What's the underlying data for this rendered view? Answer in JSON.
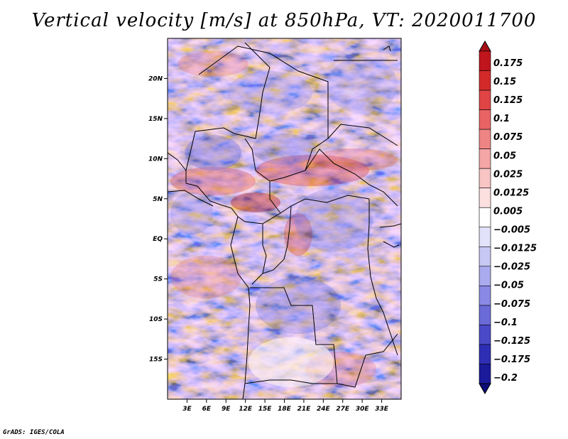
{
  "title": "Vertical velocity [m/s] at 850hPa, VT: 2020011700",
  "footer": "GrADS: IGES/COLA",
  "map": {
    "lon_range": [
      0,
      36
    ],
    "lat_range": [
      -20,
      25
    ],
    "lat_ticks": [
      {
        "value": 20,
        "label": "20N"
      },
      {
        "value": 15,
        "label": "15N"
      },
      {
        "value": 10,
        "label": "10N"
      },
      {
        "value": 5,
        "label": "5N"
      },
      {
        "value": 0,
        "label": "EQ"
      },
      {
        "value": -5,
        "label": "5S"
      },
      {
        "value": -10,
        "label": "10S"
      },
      {
        "value": -15,
        "label": "15S"
      }
    ],
    "lon_ticks": [
      {
        "value": 3,
        "label": "3E"
      },
      {
        "value": 6,
        "label": "6E"
      },
      {
        "value": 9,
        "label": "9E"
      },
      {
        "value": 12,
        "label": "12E"
      },
      {
        "value": 15,
        "label": "15E"
      },
      {
        "value": 18,
        "label": "18E"
      },
      {
        "value": 21,
        "label": "21E"
      },
      {
        "value": 24,
        "label": "24E"
      },
      {
        "value": 27,
        "label": "27E"
      },
      {
        "value": 30,
        "label": "30E"
      },
      {
        "value": 33,
        "label": "33E"
      }
    ]
  },
  "colorbar": {
    "levels": [
      "0.175",
      "0.15",
      "0.125",
      "0.1",
      "0.075",
      "0.05",
      "0.025",
      "0.0125",
      "0.005",
      "−0.005",
      "−0.0125",
      "−0.025",
      "−0.05",
      "−0.075",
      "−0.1",
      "−0.125",
      "−0.175",
      "−0.2"
    ],
    "colors": [
      "#a50f15",
      "#c0151c",
      "#d42a2a",
      "#e04444",
      "#e86464",
      "#ee8585",
      "#f4a5a5",
      "#f8c4c4",
      "#fce0e0",
      "#ffffff",
      "#e2e2fa",
      "#c8c8f4",
      "#aaaaee",
      "#8a8ae4",
      "#6a6ad8",
      "#4a4ac8",
      "#2e2eb4",
      "#1a1a9a",
      "#0c0c78"
    ]
  }
}
